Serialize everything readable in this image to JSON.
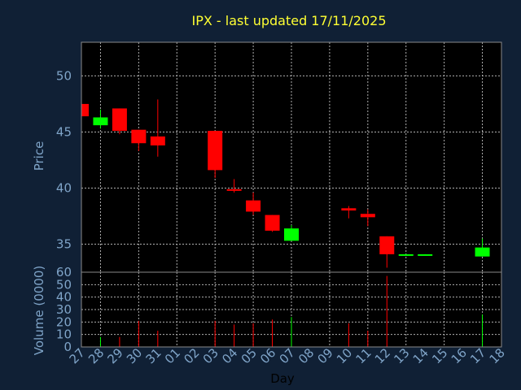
{
  "chart_data": [
    {
      "type": "candlestick",
      "title": "IPX - last updated 17/11/2025",
      "ylabel": "Price",
      "ylim": [
        32.5,
        53
      ],
      "yticks": [
        35,
        40,
        45,
        50
      ],
      "x_ticks": [
        "27",
        "28",
        "29",
        "30",
        "31",
        "01",
        "02",
        "03",
        "04",
        "05",
        "06",
        "07",
        "08",
        "09",
        "10",
        "11",
        "12",
        "13",
        "14",
        "15",
        "16",
        "17",
        "18"
      ],
      "grid": true,
      "colors": {
        "up": "#00ff00",
        "down": "#ff0000"
      },
      "candles": [
        {
          "x": "27",
          "open": 47.5,
          "high": 47.5,
          "low": 46.4,
          "close": 46.4
        },
        {
          "x": "28",
          "open": 45.6,
          "high": 47.0,
          "low": 45.3,
          "close": 46.3
        },
        {
          "x": "29",
          "open": 47.1,
          "high": 47.1,
          "low": 44.8,
          "close": 45.1
        },
        {
          "x": "30",
          "open": 45.2,
          "high": 45.2,
          "low": 43.3,
          "close": 44.0
        },
        {
          "x": "31",
          "open": 44.6,
          "high": 47.9,
          "low": 42.8,
          "close": 43.8
        },
        {
          "x": "03",
          "open": 45.1,
          "high": 45.1,
          "low": 40.9,
          "close": 41.6
        },
        {
          "x": "04",
          "open": 39.9,
          "high": 40.8,
          "low": 39.6,
          "close": 39.8
        },
        {
          "x": "05",
          "open": 38.9,
          "high": 39.6,
          "low": 37.6,
          "close": 37.9
        },
        {
          "x": "06",
          "open": 37.6,
          "high": 37.6,
          "low": 36.1,
          "close": 36.2
        },
        {
          "x": "07",
          "open": 35.3,
          "high": 36.7,
          "low": 35.3,
          "close": 36.4
        },
        {
          "x": "10",
          "open": 38.2,
          "high": 38.4,
          "low": 37.3,
          "close": 38.0
        },
        {
          "x": "11",
          "open": 37.7,
          "high": 38.1,
          "low": 36.6,
          "close": 37.4
        },
        {
          "x": "12",
          "open": 35.7,
          "high": 35.7,
          "low": 32.9,
          "close": 34.1
        },
        {
          "x": "13",
          "open": 34.0,
          "high": 34.1,
          "low": 34.0,
          "close": 34.1
        },
        {
          "x": "14",
          "open": 34.0,
          "high": 34.1,
          "low": 34.0,
          "close": 34.1
        },
        {
          "x": "17",
          "open": 33.9,
          "high": 35.5,
          "low": 33.9,
          "close": 34.7
        }
      ]
    },
    {
      "type": "bar",
      "ylabel": "Volume (0000)",
      "xlabel": "Day",
      "ylim": [
        0,
        60
      ],
      "yticks": [
        0,
        10,
        20,
        30,
        40,
        50,
        60
      ],
      "x_ticks": [
        "27",
        "28",
        "29",
        "30",
        "31",
        "01",
        "02",
        "03",
        "04",
        "05",
        "06",
        "07",
        "08",
        "09",
        "10",
        "11",
        "12",
        "13",
        "14",
        "15",
        "16",
        "17",
        "18"
      ],
      "bars": [
        {
          "x": "28",
          "value": 8,
          "color": "#00ff00"
        },
        {
          "x": "29",
          "value": 8,
          "color": "#ff0000"
        },
        {
          "x": "30",
          "value": 21,
          "color": "#ff0000"
        },
        {
          "x": "31",
          "value": 13,
          "color": "#ff0000"
        },
        {
          "x": "03",
          "value": 21,
          "color": "#ff0000"
        },
        {
          "x": "04",
          "value": 18,
          "color": "#ff0000"
        },
        {
          "x": "05",
          "value": 19,
          "color": "#ff0000"
        },
        {
          "x": "06",
          "value": 22,
          "color": "#ff0000"
        },
        {
          "x": "07",
          "value": 24,
          "color": "#00ff00"
        },
        {
          "x": "10",
          "value": 19,
          "color": "#ff0000"
        },
        {
          "x": "11",
          "value": 13,
          "color": "#ff0000"
        },
        {
          "x": "12",
          "value": 57,
          "color": "#ff0000"
        },
        {
          "x": "17",
          "value": 26,
          "color": "#00ff00"
        }
      ]
    }
  ]
}
